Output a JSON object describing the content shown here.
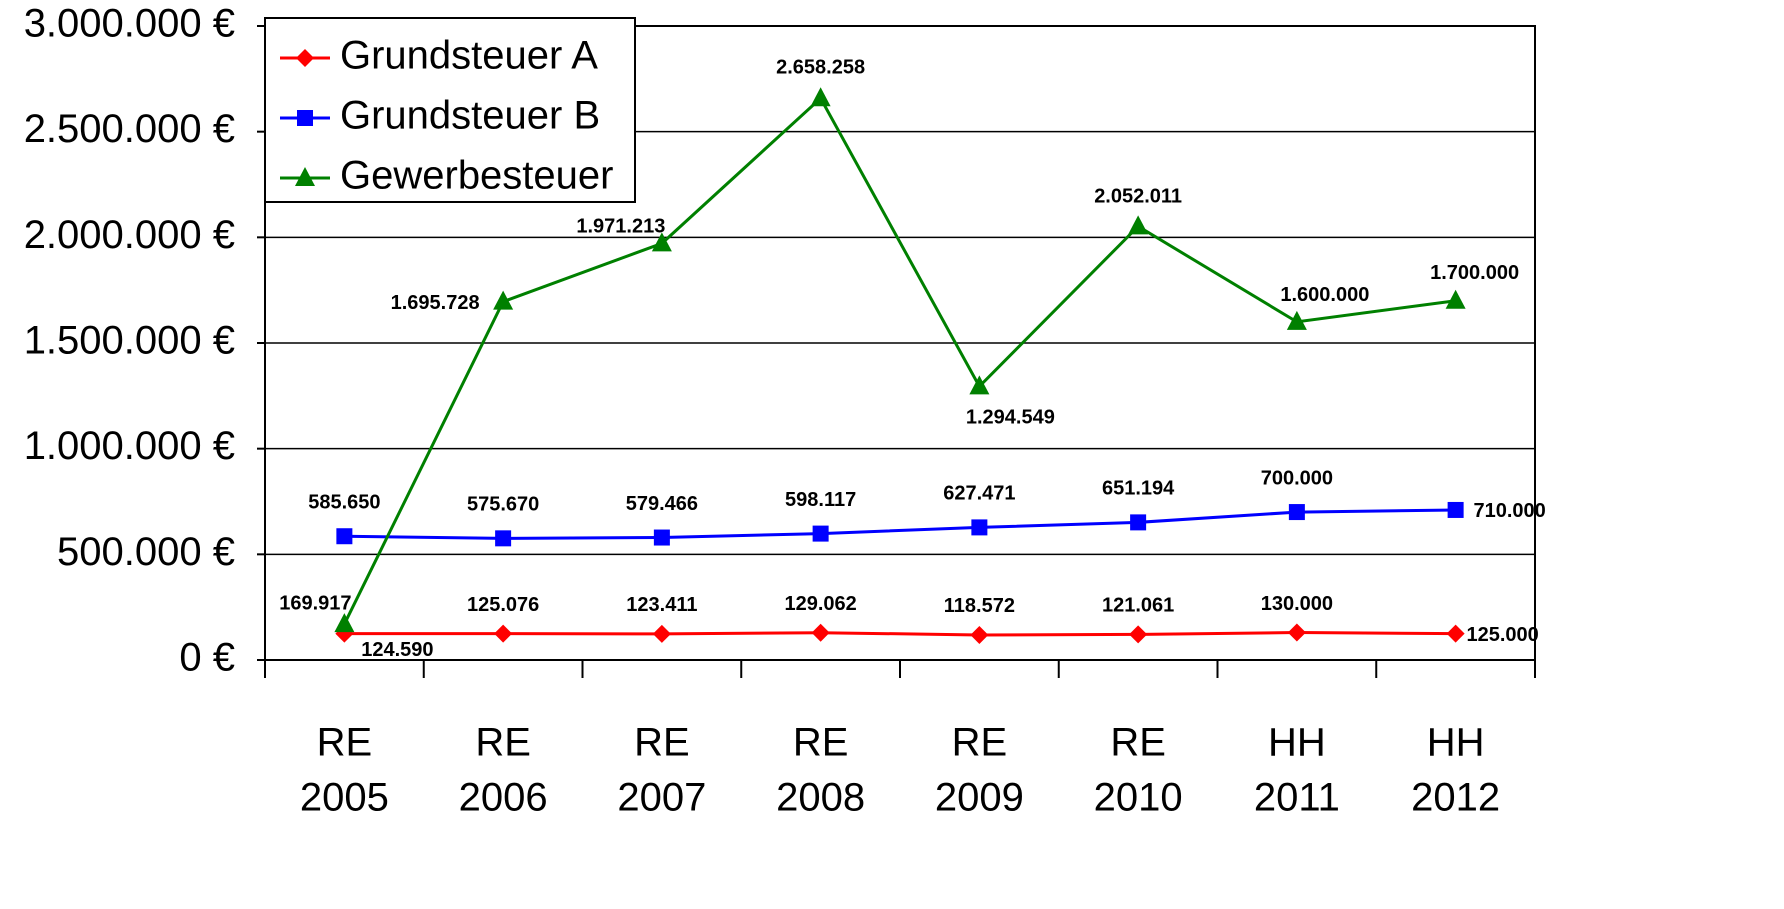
{
  "chart_data": {
    "type": "line",
    "categories": [
      [
        "RE",
        "2005"
      ],
      [
        "RE",
        "2006"
      ],
      [
        "RE",
        "2007"
      ],
      [
        "RE",
        "2008"
      ],
      [
        "RE",
        "2009"
      ],
      [
        "RE",
        "2010"
      ],
      [
        "HH",
        "2011"
      ],
      [
        "HH",
        "2012"
      ]
    ],
    "ylim": [
      0,
      3000000
    ],
    "yticks": [
      {
        "value": 0,
        "label": "0 €"
      },
      {
        "value": 500000,
        "label": "500.000 €"
      },
      {
        "value": 1000000,
        "label": "1.000.000 €"
      },
      {
        "value": 1500000,
        "label": "1.500.000 €"
      },
      {
        "value": 2000000,
        "label": "2.000.000 €"
      },
      {
        "value": 2500000,
        "label": "2.500.000 €"
      },
      {
        "value": 3000000,
        "label": "3.000.000 €"
      }
    ],
    "grid": true,
    "legend": "upper left",
    "series": [
      {
        "name": "Grundsteuer A",
        "color": "#ff0000",
        "marker": "diamond",
        "values": [
          124590,
          125076,
          123411,
          129062,
          118572,
          121061,
          130000,
          125000
        ],
        "value_labels": [
          "124.590",
          "125.076",
          "123.411",
          "129.062",
          "118.572",
          "121.061",
          "130.000",
          "125.000"
        ]
      },
      {
        "name": "Grundsteuer B",
        "color": "#0000ff",
        "marker": "square",
        "values": [
          585650,
          575670,
          579466,
          598117,
          627471,
          651194,
          700000,
          710000
        ],
        "value_labels": [
          "585.650",
          "575.670",
          "579.466",
          "598.117",
          "627.471",
          "651.194",
          "700.000",
          "710.000"
        ]
      },
      {
        "name": "Gewerbesteuer",
        "color": "#008000",
        "marker": "triangle",
        "values": [
          169917,
          1695728,
          1971213,
          2658258,
          1294549,
          2052011,
          1600000,
          1700000
        ],
        "value_labels": [
          "169.917",
          "1.695.728",
          "1.971.213",
          "2.658.258",
          "1.294.549",
          "2.052.011",
          "1.600.000",
          "1.700.000"
        ]
      }
    ]
  }
}
